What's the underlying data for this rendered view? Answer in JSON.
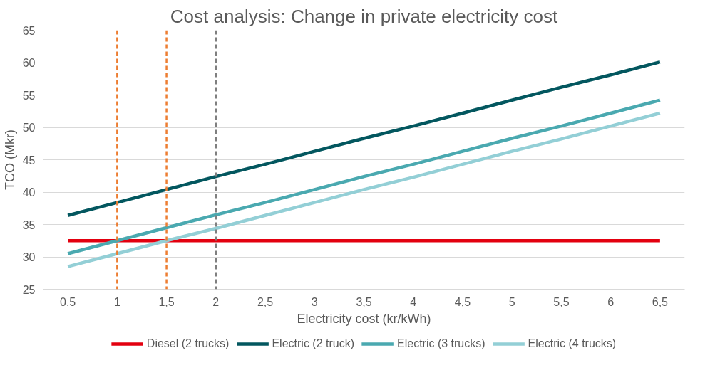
{
  "chart_data": {
    "type": "line",
    "title": "Cost analysis: Change in private electricity cost",
    "xlabel": "Electricity cost (kr/kWh)",
    "ylabel": "TCO (Mkr)",
    "x": [
      0.5,
      1,
      1.5,
      2,
      2.5,
      3,
      3.5,
      4,
      4.5,
      5,
      5.5,
      6,
      6.5
    ],
    "xlim": [
      0.25,
      6.75
    ],
    "xticks": [
      {
        "value": 0.5,
        "label": "0,5"
      },
      1,
      {
        "value": 1.5,
        "label": "1,5"
      },
      2,
      {
        "value": 2.5,
        "label": "2,5"
      },
      3,
      {
        "value": 3.5,
        "label": "3,5"
      },
      4,
      {
        "value": 4.5,
        "label": "4,5"
      },
      5,
      {
        "value": 5.5,
        "label": "5,5"
      },
      6,
      {
        "value": 6.5,
        "label": "6,5"
      }
    ],
    "ylim": [
      25,
      65
    ],
    "yticks": [
      25,
      30,
      35,
      40,
      45,
      50,
      55,
      60,
      65
    ],
    "series": [
      {
        "name": "Diesel (2 trucks)",
        "color": "#e3000f",
        "values": [
          32.5,
          32.5,
          32.5,
          32.5,
          32.5,
          32.5,
          32.5,
          32.5,
          32.5,
          32.5,
          32.5,
          32.5,
          32.5
        ]
      },
      {
        "name": "Electric (2 truck)",
        "color": "#03575f",
        "values": [
          36.4,
          38.4,
          40.4,
          42.4,
          44.3,
          46.3,
          48.3,
          50.2,
          52.2,
          54.2,
          56.2,
          58.1,
          60.1
        ]
      },
      {
        "name": "Electric (3 trucks)",
        "color": "#4aa9b0",
        "values": [
          30.5,
          32.5,
          34.5,
          36.5,
          38.4,
          40.4,
          42.4,
          44.3,
          46.3,
          48.3,
          50.2,
          52.2,
          54.2
        ]
      },
      {
        "name": "Electric (4 trucks)",
        "color": "#93cfd6",
        "values": [
          28.5,
          30.5,
          32.5,
          34.4,
          36.4,
          38.4,
          40.4,
          42.3,
          44.3,
          46.3,
          48.2,
          50.2,
          52.2
        ]
      }
    ],
    "ref_lines": [
      {
        "axis": "x",
        "value": 1,
        "color": "#ed7d31",
        "line_style": "dashed"
      },
      {
        "axis": "x",
        "value": 1.5,
        "color": "#ed7d31",
        "line_style": "dashed"
      },
      {
        "axis": "x",
        "value": 2,
        "color": "#7f7f7f",
        "line_style": "dashed"
      }
    ],
    "grid": "y",
    "legend": "bottom",
    "marker": "none",
    "line_style": "solid"
  }
}
